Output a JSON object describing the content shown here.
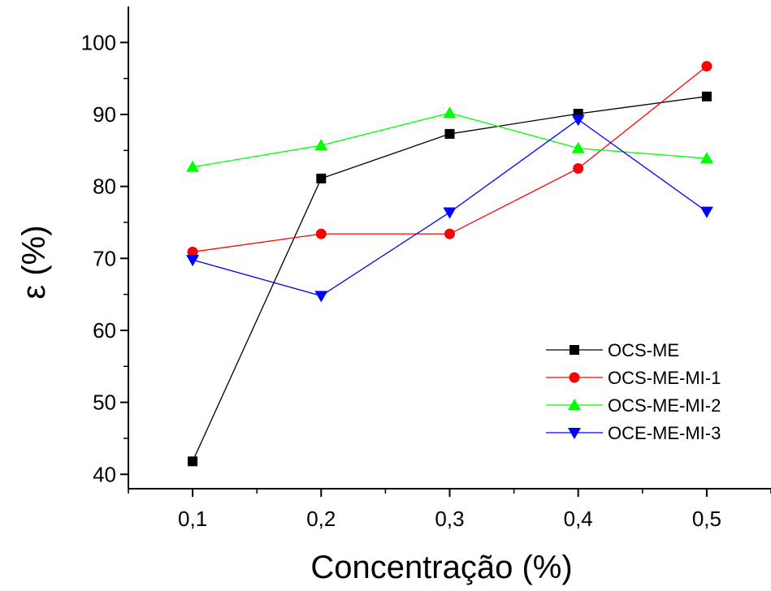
{
  "chart_data": {
    "type": "line",
    "title": "",
    "xlabel": "Concentração (%)",
    "ylabel": "ε (%)",
    "x": [
      0.1,
      0.2,
      0.3,
      0.4,
      0.5
    ],
    "x_tick_labels": [
      "0,1",
      "0,2",
      "0,3",
      "0,4",
      "0,5"
    ],
    "xlim": [
      0.05,
      0.55
    ],
    "ylim": [
      38,
      105
    ],
    "y_ticks": [
      40,
      50,
      60,
      70,
      80,
      90,
      100
    ],
    "y_tick_labels": [
      "40",
      "50",
      "60",
      "70",
      "80",
      "90",
      "100"
    ],
    "grid": false,
    "legend_position": "bottom-right",
    "series": [
      {
        "name": "OCS-ME",
        "values": [
          41.8,
          81.1,
          87.3,
          90.1,
          92.5
        ],
        "color": "#000000",
        "marker": "square"
      },
      {
        "name": "OCS-ME-MI-1",
        "values": [
          70.9,
          73.4,
          73.4,
          82.5,
          96.7
        ],
        "color": "#ff0000",
        "marker": "circle"
      },
      {
        "name": "OCS-ME-MI-2",
        "values": [
          82.7,
          85.7,
          90.2,
          85.3,
          83.9
        ],
        "color": "#00ff00",
        "marker": "triangle-up"
      },
      {
        "name": "OCE-ME-MI-3",
        "values": [
          69.8,
          64.8,
          76.4,
          89.3,
          76.5
        ],
        "color": "#0000ff",
        "marker": "triangle-down"
      }
    ]
  }
}
